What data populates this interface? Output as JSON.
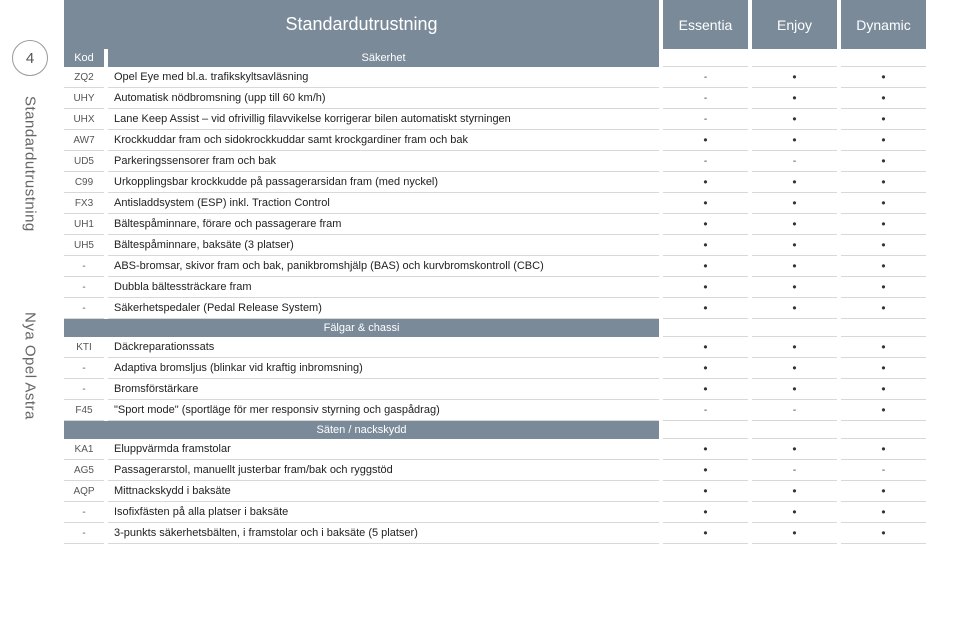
{
  "accent_color": "#7a8a99",
  "page_number": "4",
  "vertical_labels": [
    "Standardutrustning",
    "Nya Opel Astra"
  ],
  "header": {
    "main": "Standardutrustning",
    "cols": [
      "Essentia",
      "Enjoy",
      "Dynamic"
    ]
  },
  "sections": [
    {
      "kod_label": "Kod",
      "title": "Säkerhet",
      "rows": [
        {
          "kod": "ZQ2",
          "desc": "Opel Eye med bl.a. trafikskyltsavläsning",
          "marks": [
            "-",
            "•",
            "•"
          ]
        },
        {
          "kod": "UHY",
          "desc": "Automatisk nödbromsning (upp till 60 km/h)",
          "marks": [
            "-",
            "•",
            "•"
          ]
        },
        {
          "kod": "UHX",
          "desc": "Lane Keep Assist – vid ofrivillig filavvikelse korrigerar bilen automatiskt styrningen",
          "marks": [
            "-",
            "•",
            "•"
          ]
        },
        {
          "kod": "AW7",
          "desc": "Krockkuddar fram och sidokrockkuddar samt krockgardiner fram och bak",
          "marks": [
            "•",
            "•",
            "•"
          ]
        },
        {
          "kod": "UD5",
          "desc": "Parkeringssensorer fram och bak",
          "marks": [
            "-",
            "-",
            "•"
          ]
        },
        {
          "kod": "C99",
          "desc": "Urkopplingsbar krockkudde på passagerarsidan fram (med nyckel)",
          "marks": [
            "•",
            "•",
            "•"
          ]
        },
        {
          "kod": "FX3",
          "desc": "Antisladdsystem (ESP) inkl. Traction Control",
          "marks": [
            "•",
            "•",
            "•"
          ]
        },
        {
          "kod": "UH1",
          "desc": "Bältespåminnare, förare och passagerare fram",
          "marks": [
            "•",
            "•",
            "•"
          ]
        },
        {
          "kod": "UH5",
          "desc": "Bältespåminnare, baksäte (3 platser)",
          "marks": [
            "•",
            "•",
            "•"
          ]
        },
        {
          "kod": "-",
          "desc": "ABS-bromsar, skivor fram och bak, panikbromshjälp (BAS) och kurvbromskontroll (CBC)",
          "marks": [
            "•",
            "•",
            "•"
          ]
        },
        {
          "kod": "-",
          "desc": "Dubbla bältessträckare fram",
          "marks": [
            "•",
            "•",
            "•"
          ]
        },
        {
          "kod": "-",
          "desc": "Säkerhetspedaler (Pedal Release System)",
          "marks": [
            "•",
            "•",
            "•"
          ]
        }
      ]
    },
    {
      "title": "Fälgar & chassi",
      "rows": [
        {
          "kod": "KTI",
          "desc": "Däckreparationssats",
          "marks": [
            "•",
            "•",
            "•"
          ]
        },
        {
          "kod": "-",
          "desc": "Adaptiva bromsljus (blinkar vid kraftig inbromsning)",
          "marks": [
            "•",
            "•",
            "•"
          ]
        },
        {
          "kod": "-",
          "desc": "Bromsförstärkare",
          "marks": [
            "•",
            "•",
            "•"
          ]
        },
        {
          "kod": "F45",
          "desc": "\"Sport mode\" (sportläge för mer responsiv styrning och gaspådrag)",
          "marks": [
            "-",
            "-",
            "•"
          ]
        }
      ]
    },
    {
      "title": "Säten / nackskydd",
      "rows": [
        {
          "kod": "KA1",
          "desc": "Eluppvärmda framstolar",
          "marks": [
            "•",
            "•",
            "•"
          ]
        },
        {
          "kod": "AG5",
          "desc": "Passagerarstol, manuellt justerbar fram/bak och ryggstöd",
          "marks": [
            "•",
            "-",
            "-"
          ]
        },
        {
          "kod": "AQP",
          "desc": "Mittnackskydd i baksäte",
          "marks": [
            "•",
            "•",
            "•"
          ]
        },
        {
          "kod": "-",
          "desc": "Isofixfästen på alla platser i baksäte",
          "marks": [
            "•",
            "•",
            "•"
          ]
        },
        {
          "kod": "-",
          "desc": "3-punkts säkerhetsbälten, i framstolar och i baksäte (5 platser)",
          "marks": [
            "•",
            "•",
            "•"
          ]
        }
      ]
    }
  ]
}
